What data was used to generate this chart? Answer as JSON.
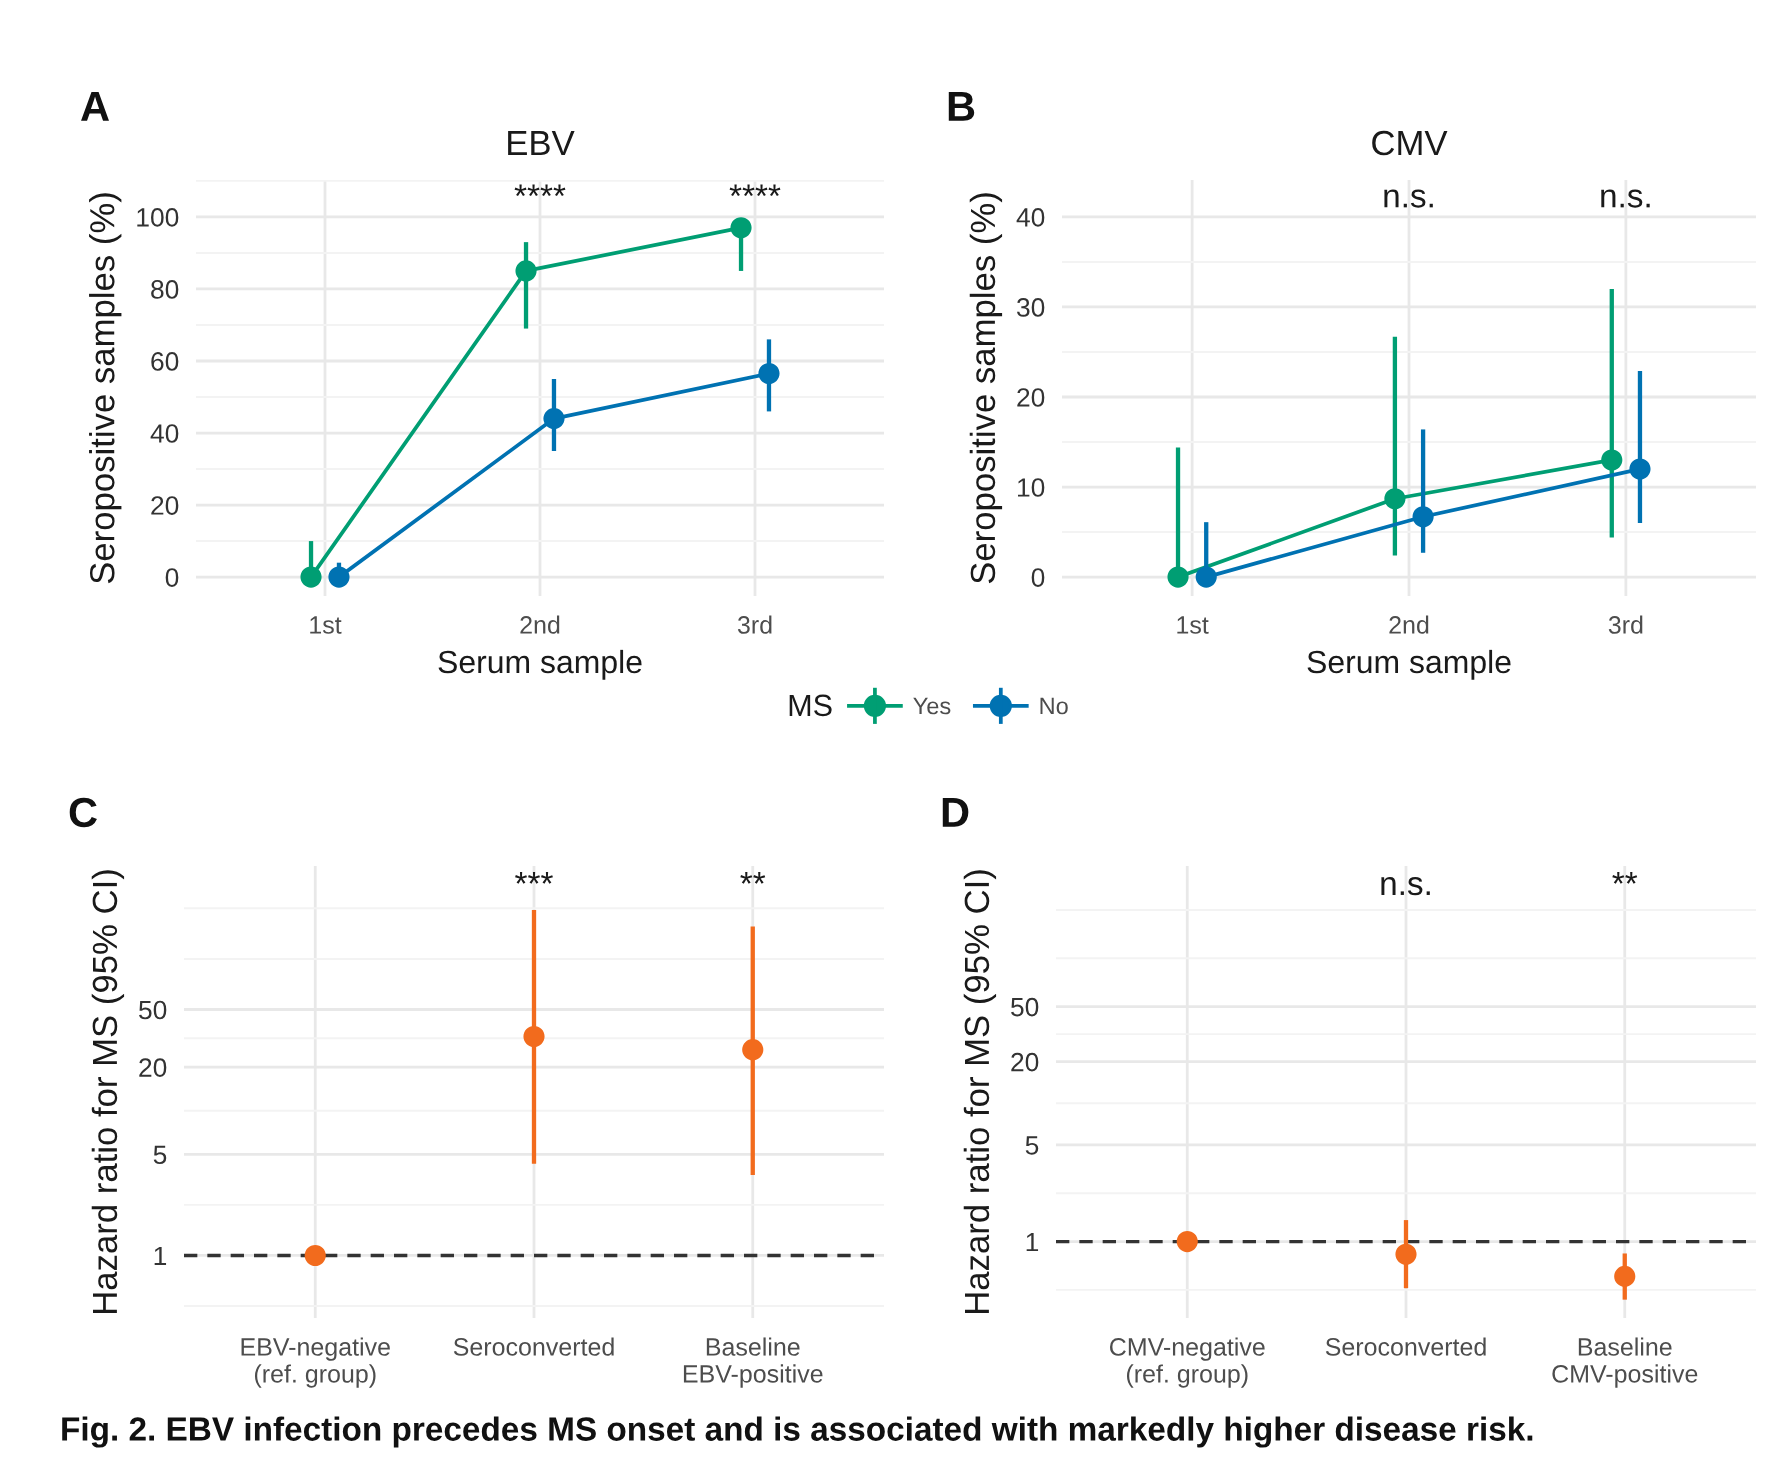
{
  "chart_data": [
    {
      "type": "line",
      "title": "EBV",
      "xlabel": "Serum sample",
      "ylabel": "Seropositive samples (%)",
      "legend_title": "MS",
      "legend": "bottom",
      "categories": [
        "1st",
        "2nd",
        "3rd"
      ],
      "series": [
        {
          "name": "Yes",
          "color": "#009E73",
          "values": [
            0,
            85,
            97
          ],
          "errors": [
            [
              0,
              10
            ],
            [
              69,
              93
            ],
            [
              85,
              99
            ]
          ]
        },
        {
          "name": "No",
          "color": "#0072B2",
          "values": [
            0,
            44,
            56.5
          ],
          "errors": [
            [
              0,
              4
            ],
            [
              35,
              55
            ],
            [
              46,
              66
            ]
          ]
        }
      ],
      "ylim": [
        -5.25,
        110.25
      ],
      "yticks": [
        0,
        20,
        40,
        60,
        80,
        100
      ],
      "grid": true,
      "marker": "circle",
      "line_style": "solid",
      "annotations": [
        "A",
        "****",
        "****"
      ]
    },
    {
      "type": "line",
      "title": "CMV",
      "xlabel": "Serum sample",
      "ylabel": "Seropositive samples (%)",
      "categories": [
        "1st",
        "2nd",
        "3rd"
      ],
      "series": [
        {
          "color": "#009E73",
          "values": [
            0,
            8.7,
            13
          ],
          "errors": [
            [
              0,
              14.4
            ],
            [
              2.4,
              26.7
            ],
            [
              4.4,
              32
            ]
          ]
        },
        {
          "color": "#0072B2",
          "values": [
            0,
            6.7,
            12
          ],
          "errors": [
            [
              0,
              6.1
            ],
            [
              2.7,
              16.4
            ],
            [
              6,
              22.9
            ]
          ]
        }
      ],
      "ylim": [
        -2.1,
        44.1
      ],
      "yticks": [
        0,
        10,
        20,
        30,
        40
      ],
      "grid": true,
      "marker": "circle",
      "line_style": "solid",
      "annotations": [
        "B",
        "n.s.",
        "n.s."
      ]
    },
    {
      "type": "scatter",
      "ylabel": "Hazard ratio for MS (95% CI)",
      "categories": [
        "EBV-negative\n(ref. group)",
        "Seroconverted",
        "Baseline\nEBV-positive"
      ],
      "color": "#F26B1D",
      "values": [
        1,
        32.5,
        26.4
      ],
      "errors": [
        null,
        [
          4.3,
          243
        ],
        [
          3.6,
          187
        ]
      ],
      "log": true,
      "ylim": [
        0.37,
        490
      ],
      "yticks": [
        1,
        5,
        20,
        50
      ],
      "grid": true,
      "marker": "circle",
      "ref_lines": [
        {
          "axis": "y",
          "value": 1,
          "color": "#333333",
          "line_style": "dashed"
        }
      ],
      "annotations": [
        "C",
        "***",
        "**"
      ]
    },
    {
      "type": "scatter",
      "ylabel": "Hazard ratio for MS (95% CI)",
      "categories": [
        "CMV-negative\n(ref. group)",
        "Seroconverted",
        "Baseline\nCMV-positive"
      ],
      "color": "#F26B1D",
      "values": [
        1,
        0.81,
        0.56
      ],
      "errors": [
        null,
        [
          0.46,
          1.43
        ],
        [
          0.38,
          0.82
        ]
      ],
      "log": true,
      "ylim": [
        0.28,
        520
      ],
      "yticks": [
        1,
        5,
        20,
        50
      ],
      "grid": true,
      "marker": "circle",
      "ref_lines": [
        {
          "axis": "y",
          "value": 1,
          "color": "#333333",
          "line_style": "dashed"
        }
      ],
      "annotations": [
        "D",
        "n.s.",
        "**"
      ]
    },
    {
      "type": "other",
      "annotations": [
        "Fig. 2. EBV infection precedes MS onset and is associated with markedly higher disease risk."
      ]
    }
  ]
}
